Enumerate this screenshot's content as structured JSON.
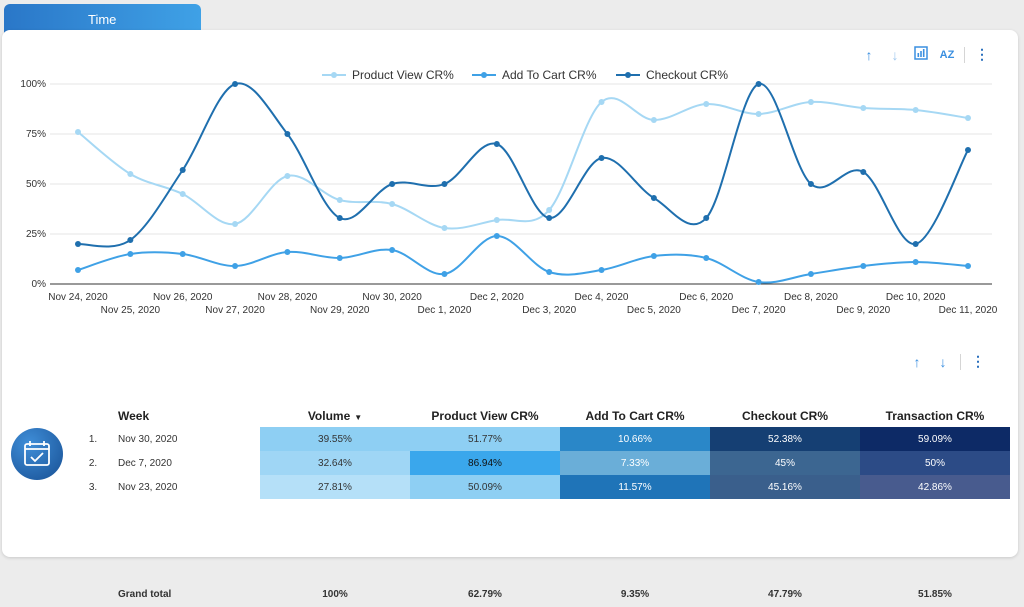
{
  "tab_label": "Time",
  "chart_toolbar": {
    "icons": [
      "arrow-up-icon",
      "arrow-down-icon",
      "chart-icon",
      "sort-az-icon",
      "more-vert-icon"
    ]
  },
  "table_toolbar": {
    "icons": [
      "arrow-up-icon",
      "arrow-down-icon",
      "more-vert-icon"
    ]
  },
  "chart_data": {
    "type": "line",
    "categories": [
      "Nov 24, 2020",
      "Nov 25, 2020",
      "Nov 26, 2020",
      "Nov 27, 2020",
      "Nov 28, 2020",
      "Nov 29, 2020",
      "Nov 30, 2020",
      "Dec 1, 2020",
      "Dec 2, 2020",
      "Dec 3, 2020",
      "Dec 4, 2020",
      "Dec 5, 2020",
      "Dec 6, 2020",
      "Dec 7, 2020",
      "Dec 8, 2020",
      "Dec 9, 2020",
      "Dec 10, 2020",
      "Dec 11, 2020"
    ],
    "series": [
      {
        "name": "Product View CR%",
        "color": "#a6d8f4",
        "values": [
          76,
          55,
          45,
          30,
          54,
          42,
          40,
          28,
          32,
          37,
          91,
          82,
          90,
          85,
          91,
          88,
          87,
          83
        ]
      },
      {
        "name": "Add To Cart CR%",
        "color": "#3fa1e6",
        "values": [
          7,
          15,
          15,
          9,
          16,
          13,
          17,
          5,
          24,
          6,
          7,
          14,
          13,
          1,
          5,
          9,
          11,
          9
        ]
      },
      {
        "name": "Checkout CR%",
        "color": "#1f6fae",
        "values": [
          20,
          22,
          57,
          100,
          75,
          33,
          50,
          50,
          70,
          33,
          63,
          43,
          33,
          100,
          50,
          56,
          20,
          67
        ]
      }
    ],
    "yticks": [
      "0%",
      "25%",
      "50%",
      "75%",
      "100%"
    ],
    "ylim": [
      0,
      100
    ],
    "legend_position": "top-center"
  },
  "table": {
    "headers": [
      "Week",
      "Volume",
      "Product View CR%",
      "Add To Cart CR%",
      "Checkout CR%",
      "Transaction CR%"
    ],
    "sort_indicator": "▼",
    "rows": [
      {
        "idx": "1.",
        "week": "Nov 30, 2020",
        "vals": [
          "39.55%",
          "51.77%",
          "10.66%",
          "52.38%",
          "59.09%"
        ]
      },
      {
        "idx": "2.",
        "week": "Dec 7, 2020",
        "vals": [
          "32.64%",
          "86.94%",
          "7.33%",
          "45%",
          "50%"
        ]
      },
      {
        "idx": "3.",
        "week": "Nov 23, 2020",
        "vals": [
          "27.81%",
          "50.09%",
          "11.57%",
          "45.16%",
          "42.86%"
        ]
      }
    ],
    "cell_colors": [
      [
        "#8ecff3",
        "#8ecff3",
        "#2a87c8",
        "#153f73",
        "#0d2a66"
      ],
      [
        "#9fd6f5",
        "#3aa7ec",
        "#6aaed8",
        "#3c6691",
        "#2c4b86"
      ],
      [
        "#b5e0f8",
        "#8ecff3",
        "#1f74b8",
        "#3a5f8c",
        "#485b8e"
      ]
    ],
    "cell_text_colors": [
      [
        "#333",
        "#333",
        "#fff",
        "#fff",
        "#fff"
      ],
      [
        "#333",
        "#111",
        "#fff",
        "#fff",
        "#fff"
      ],
      [
        "#333",
        "#333",
        "#fff",
        "#fff",
        "#fff"
      ]
    ],
    "grand_total": {
      "label": "Grand total",
      "vals": [
        "100%",
        "62.79%",
        "9.35%",
        "47.79%",
        "51.85%"
      ]
    }
  }
}
